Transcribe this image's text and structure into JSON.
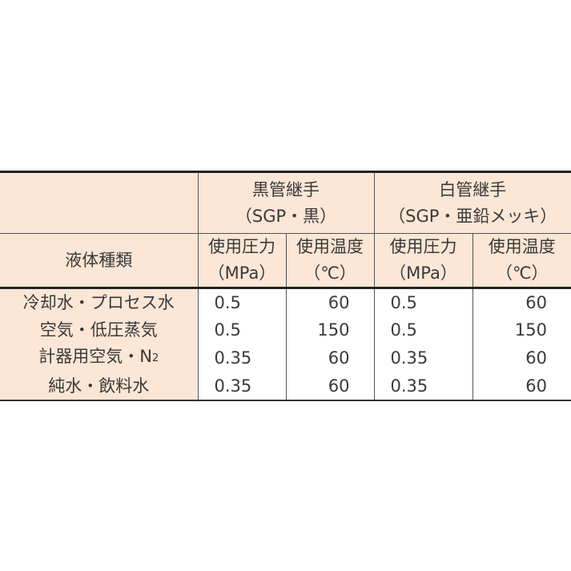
{
  "header": {
    "fluid_type": "液体種類",
    "groups": [
      {
        "title": "黒管継手",
        "subtitle": "（SGP・黒）"
      },
      {
        "title": "白管継手",
        "subtitle": "（SGP・亜鉛メッキ）"
      }
    ],
    "pressure": "使用圧力",
    "pressure_unit": "（MPa）",
    "temperature": "使用温度",
    "temperature_unit": "（℃）"
  },
  "rows": [
    {
      "fluid": "冷却水・プロセス水",
      "black_p": "0.5",
      "black_t": "60",
      "white_p": "0.5",
      "white_t": "60"
    },
    {
      "fluid": "空気・低圧蒸気",
      "black_p": "0.5",
      "black_t": "150",
      "white_p": "0.5",
      "white_t": "150"
    },
    {
      "fluid": "計器用空気・N",
      "fluid_sub": "2",
      "black_p": "0.35",
      "black_t": "60",
      "white_p": "0.35",
      "white_t": "60"
    },
    {
      "fluid": "純水・飲料水",
      "black_p": "0.35",
      "black_t": "60",
      "white_p": "0.35",
      "white_t": "60"
    }
  ]
}
